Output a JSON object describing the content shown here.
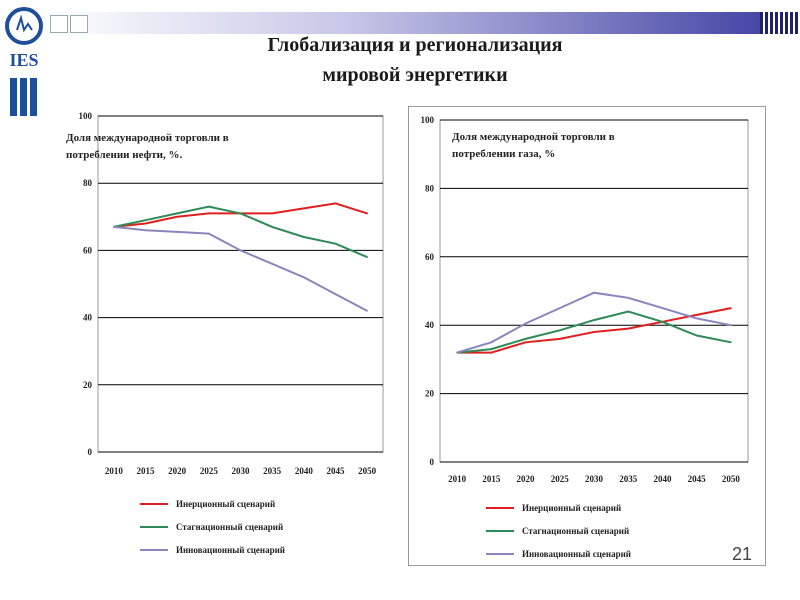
{
  "page": {
    "title_line1": "Глобализация и регионализация",
    "title_line2": "мировой энергетики",
    "page_number": "21",
    "logo_text": "IES"
  },
  "colors": {
    "inertial": "#e02020",
    "stagnation": "#2e8b57",
    "innovation": "#8a86bd",
    "grid": "#000000"
  },
  "chart_data": [
    {
      "type": "line",
      "title": "Доля международной торговли в потреблении нефти, %.",
      "title_lines": [
        "Доля международной торговли в",
        "потреблении нефти, %."
      ],
      "xlabel": "",
      "ylabel": "",
      "x": [
        "2010",
        "2015",
        "2020",
        "2025",
        "2030",
        "2035",
        "2040",
        "2045",
        "2050"
      ],
      "ylim": [
        0,
        100
      ],
      "yticks": [
        0,
        20,
        40,
        60,
        80,
        100
      ],
      "grid": true,
      "legend_placement": "bottom",
      "series": [
        {
          "name": "Инерционный сценарий",
          "color_key": "inertial",
          "values": [
            67,
            68,
            70,
            71,
            71,
            71,
            72.5,
            74,
            71
          ]
        },
        {
          "name": "Стагнационный сценарий",
          "color_key": "stagnation",
          "values": [
            67,
            69,
            71,
            73,
            71,
            67,
            64,
            62,
            58
          ]
        },
        {
          "name": "Инновационный сценарий",
          "color_key": "innovation",
          "values": [
            67,
            66,
            65.5,
            65,
            60,
            56,
            52,
            47,
            42
          ]
        }
      ]
    },
    {
      "type": "line",
      "title": "Доля международной торговли в потреблении газа, %",
      "title_lines": [
        "Доля международной торговли в",
        "потреблении газа, %"
      ],
      "xlabel": "",
      "ylabel": "",
      "x": [
        "2010",
        "2015",
        "2020",
        "2025",
        "2030",
        "2035",
        "2040",
        "2045",
        "2050"
      ],
      "ylim": [
        0,
        100
      ],
      "yticks": [
        0,
        20,
        40,
        60,
        80,
        100
      ],
      "grid": true,
      "legend_placement": "bottom",
      "series": [
        {
          "name": "Инерционный сценарий",
          "color_key": "inertial",
          "values": [
            32,
            32,
            35,
            36,
            38,
            39,
            41,
            43,
            45
          ]
        },
        {
          "name": "Стагнационный сценарий",
          "color_key": "stagnation",
          "values": [
            32,
            33,
            36,
            38.5,
            41.5,
            44,
            41,
            37,
            35
          ]
        },
        {
          "name": "Инновационный сценарий",
          "color_key": "innovation",
          "values": [
            32,
            35,
            40.5,
            45,
            49.5,
            48,
            45,
            42,
            40
          ]
        }
      ]
    }
  ]
}
